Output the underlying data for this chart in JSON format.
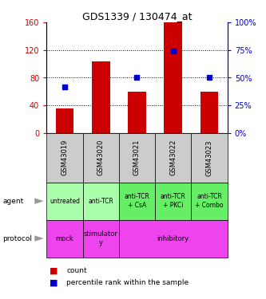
{
  "title": "GDS1339 / 130474_at",
  "samples": [
    "GSM43019",
    "GSM43020",
    "GSM43021",
    "GSM43022",
    "GSM43023"
  ],
  "counts": [
    36,
    104,
    60,
    160,
    60
  ],
  "percentile_ranks": [
    42,
    null,
    50,
    74,
    50
  ],
  "ylim_left": [
    0,
    160
  ],
  "yticks_left": [
    0,
    40,
    80,
    120,
    160
  ],
  "ylim_right": [
    0,
    100
  ],
  "yticks_right": [
    0,
    25,
    50,
    75,
    100
  ],
  "bar_color": "#cc0000",
  "dot_color": "#0000cc",
  "agent_labels": [
    "untreated",
    "anti-TCR",
    "anti-TCR\n+ CsA",
    "anti-TCR\n+ PKCi",
    "anti-TCR\n+ Combo"
  ],
  "agent_color": "#aaffaa",
  "agent_color_dark": "#66ee66",
  "sample_bg_color": "#cccccc",
  "protocol_color": "#ee44ee",
  "protocol_spans": [
    [
      0,
      0,
      "mock"
    ],
    [
      1,
      1,
      "stimulator\ny"
    ],
    [
      2,
      4,
      "inhibitory"
    ]
  ],
  "legend_count_color": "#cc0000",
  "legend_pct_color": "#0000cc",
  "arrow_color": "#999999"
}
